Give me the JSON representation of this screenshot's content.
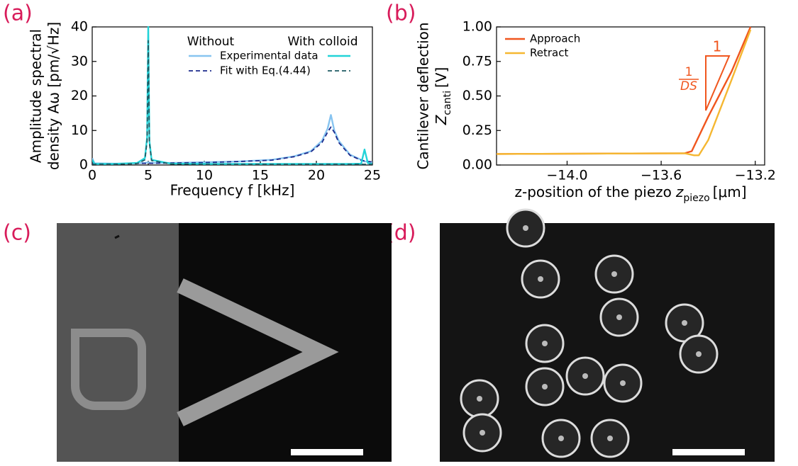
{
  "panel_labels": [
    "(a)",
    "(b)",
    "(c)",
    "(d)"
  ],
  "chart_data": [
    {
      "type": "line",
      "xlabel": "Frequency f [kHz]",
      "ylabel": [
        "Amplitude spectral",
        "density Aω [pm/√Hz]"
      ],
      "xlim": [
        0,
        25
      ],
      "xticks": [
        0,
        5,
        10,
        15,
        20,
        25
      ],
      "ylim": [
        0,
        40
      ],
      "yticks": [
        0,
        10,
        20,
        30,
        40
      ],
      "legend": {
        "columns": [
          "Without",
          "With colloid"
        ],
        "rows": [
          "Experimental data",
          "Fit with Eq.(4.44)"
        ]
      },
      "x": [
        0,
        0.2,
        2,
        4,
        4.7,
        4.9,
        5,
        5.1,
        5.3,
        7,
        10,
        13,
        16,
        18,
        19.5,
        20.5,
        21,
        21.3,
        21.6,
        22,
        23,
        24,
        24.3,
        24.6,
        25
      ],
      "series": [
        {
          "color": "#87c4f0",
          "dash": false,
          "values": [
            2,
            0.5,
            0.4,
            0.5,
            0.6,
            0.7,
            0.8,
            0.7,
            0.6,
            0.6,
            0.8,
            1,
            1.5,
            2.5,
            4,
            7,
            10.5,
            14.5,
            10,
            7,
            3,
            1.5,
            1,
            1,
            0.8
          ]
        },
        {
          "color": "#1c2a8c",
          "dash": true,
          "values": [
            0.4,
            0.4,
            0.4,
            0.5,
            0.5,
            0.5,
            0.5,
            0.5,
            0.5,
            0.6,
            0.7,
            1,
            1.4,
            2.4,
            3.8,
            6.5,
            9.5,
            11,
            9.5,
            6.5,
            2.8,
            1.4,
            1.2,
            1,
            0.9
          ]
        },
        {
          "color": "#22d3d8",
          "dash": false,
          "values": [
            1.5,
            0.3,
            0.3,
            0.6,
            2,
            8,
            40,
            7,
            1.5,
            0.4,
            0.3,
            0.3,
            0.3,
            0.3,
            0.3,
            0.3,
            0.3,
            0.3,
            0.3,
            0.3,
            0.3,
            0.4,
            4.5,
            0.5,
            0.3
          ]
        },
        {
          "color": "#1f5a63",
          "dash": true,
          "values": [
            0.2,
            0.2,
            0.2,
            0.4,
            1.5,
            7,
            36,
            6.5,
            1.3,
            0.3,
            0.2,
            0.2,
            0.2,
            0.2,
            0.2,
            0.2,
            0.2,
            0.2,
            0.2,
            0.2,
            0.2,
            0.2,
            0.2,
            0.2,
            0.2
          ]
        }
      ]
    },
    {
      "type": "line",
      "xlabel": {
        "text": "z-position of the piezo",
        "symbol": "z",
        "sub": "piezo",
        "unit": "[μm]"
      },
      "ylabel": {
        "line1": "Cantilever deflection",
        "symbol": "Z",
        "sub": "canti",
        "unit": "[V]"
      },
      "xlim": [
        -14.3,
        -13.16
      ],
      "xticks": [
        {
          "value": -14.0,
          "label": "−14.0"
        },
        {
          "value": -13.6,
          "label": "−13.6"
        },
        {
          "value": -13.2,
          "label": "−13.2"
        }
      ],
      "ylim": [
        0,
        1.0
      ],
      "yticks": [
        {
          "value": 0,
          "label": "0.00"
        },
        {
          "value": 0.25,
          "label": "0.25"
        },
        {
          "value": 0.5,
          "label": "0.50"
        },
        {
          "value": 0.75,
          "label": "0.75"
        },
        {
          "value": 1.0,
          "label": "1.00"
        }
      ],
      "legend_loc": "upper left",
      "annotation": {
        "run": "1",
        "rise_num": "1",
        "rise_den": "DS"
      },
      "series": [
        {
          "name": "Approach",
          "color": "#f0561e",
          "dash": false,
          "x": [
            -14.3,
            -13.5,
            -13.47,
            -13.4,
            -13.3,
            -13.22
          ],
          "values": [
            0.08,
            0.085,
            0.1,
            0.35,
            0.68,
            1.0
          ]
        },
        {
          "name": "Retract",
          "color": "#f5b731",
          "dash": false,
          "x": [
            -14.3,
            -13.5,
            -13.46,
            -13.44,
            -13.4,
            -13.3,
            -13.22
          ],
          "values": [
            0.08,
            0.085,
            0.07,
            0.07,
            0.18,
            0.62,
            0.98
          ]
        }
      ]
    }
  ]
}
